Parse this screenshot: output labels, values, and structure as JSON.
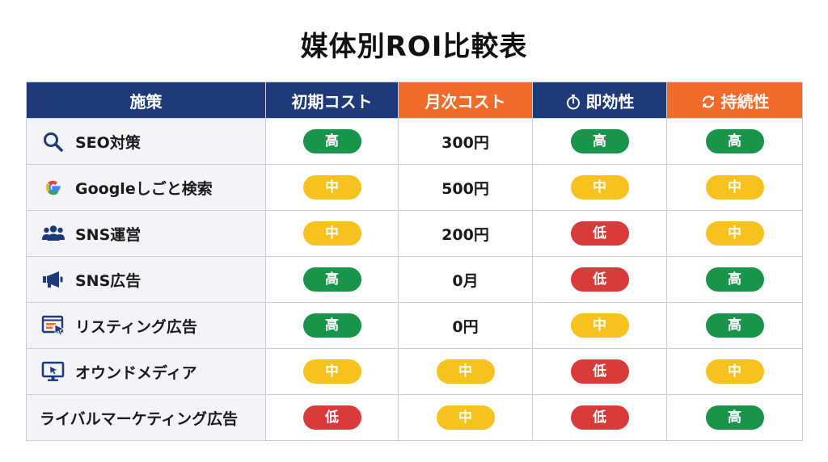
{
  "title": "媒体別ROI比較表",
  "colors": {
    "header_navy": "#1e3a7b",
    "header_orange": "#f26b2a",
    "high": "#18954a",
    "mid": "#f7c21d",
    "low": "#d93a3a"
  },
  "headers": [
    {
      "label": "施策",
      "style": "navy",
      "icon": ""
    },
    {
      "label": "初期コスト",
      "style": "navy",
      "icon": ""
    },
    {
      "label": "月次コスト",
      "style": "orange",
      "icon": ""
    },
    {
      "label": "即効性",
      "style": "navy",
      "icon": "stopwatch-icon"
    },
    {
      "label": "持続性",
      "style": "orange",
      "icon": "refresh-icon"
    }
  ],
  "rows": [
    {
      "name": "SEO対策",
      "icon": "search-icon",
      "initial": {
        "text": "高",
        "level": "high"
      },
      "monthly": {
        "type": "text",
        "text": "300円"
      },
      "speed": {
        "text": "高",
        "level": "high"
      },
      "sustain": {
        "text": "高",
        "level": "high"
      }
    },
    {
      "name": "Googleしごと検索",
      "icon": "google-icon",
      "initial": {
        "text": "中",
        "level": "mid"
      },
      "monthly": {
        "type": "text",
        "text": "500円"
      },
      "speed": {
        "text": "中",
        "level": "mid"
      },
      "sustain": {
        "text": "中",
        "level": "mid"
      }
    },
    {
      "name": "SNS運営",
      "icon": "people-icon",
      "initial": {
        "text": "中",
        "level": "mid"
      },
      "monthly": {
        "type": "text",
        "text": "200円"
      },
      "speed": {
        "text": "低",
        "level": "low"
      },
      "sustain": {
        "text": "中",
        "level": "mid"
      }
    },
    {
      "name": "SNS広告",
      "icon": "megaphone-icon",
      "initial": {
        "text": "高",
        "level": "high"
      },
      "monthly": {
        "type": "text",
        "text": "0月"
      },
      "speed": {
        "text": "低",
        "level": "low"
      },
      "sustain": {
        "text": "高",
        "level": "high"
      }
    },
    {
      "name": "リスティング広告",
      "icon": "listing-ad-icon",
      "initial": {
        "text": "高",
        "level": "high"
      },
      "monthly": {
        "type": "text",
        "text": "0円"
      },
      "speed": {
        "text": "中",
        "level": "mid"
      },
      "sustain": {
        "text": "高",
        "level": "high"
      }
    },
    {
      "name": "オウンドメディア",
      "icon": "monitor-icon",
      "initial": {
        "text": "中",
        "level": "mid"
      },
      "monthly": {
        "type": "pill",
        "text": "中",
        "level": "mid"
      },
      "speed": {
        "text": "低",
        "level": "low"
      },
      "sustain": {
        "text": "中",
        "level": "mid"
      }
    },
    {
      "name": "ライバルマーケティング広告",
      "icon": "",
      "initial": {
        "text": "低",
        "level": "low"
      },
      "monthly": {
        "type": "pill",
        "text": "中",
        "level": "mid"
      },
      "speed": {
        "text": "低",
        "level": "low"
      },
      "sustain": {
        "text": "高",
        "level": "high"
      }
    }
  ]
}
